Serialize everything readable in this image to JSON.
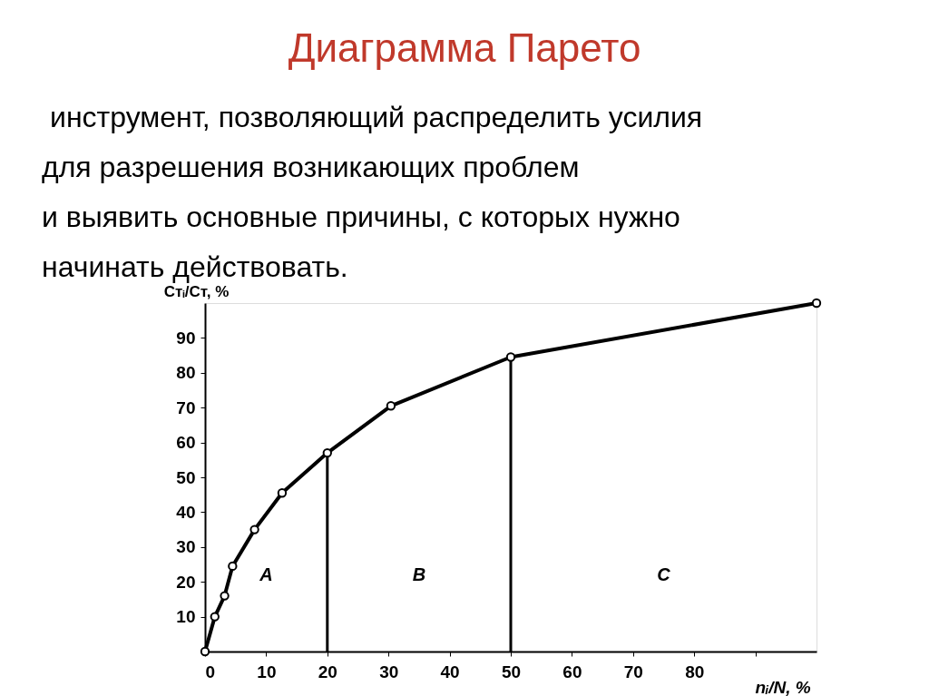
{
  "chart_data": {
    "type": "line",
    "title": "Диаграмма Парето",
    "subtitle": "инструмент, позволяющий распределить усилия\nдля разрешения возникающих проблем\nи выявить основные причины, с которых нужно\nначинать действовать.",
    "xlabel": "nᵢ/N, %",
    "ylabel": "Стᵢ/Ст, %",
    "x": [
      0,
      1.6,
      3.2,
      4.5,
      8.1,
      12.6,
      20,
      30.4,
      50,
      100
    ],
    "series": [
      {
        "color": "#000000",
        "values": [
          0,
          10,
          16,
          24.5,
          35,
          45.5,
          57,
          70.5,
          84.5,
          100
        ]
      }
    ],
    "xlim": [
      0,
      100
    ],
    "ylim": [
      0,
      100
    ],
    "xticks": [
      0,
      10,
      20,
      30,
      40,
      50,
      60,
      70,
      80,
      {
        "value": 90,
        "label": null
      }
    ],
    "yticks": [
      10,
      20,
      30,
      40,
      50,
      60,
      70,
      80,
      90
    ],
    "ref_lines": [
      {
        "axis": "x",
        "value": 20,
        "label": null
      },
      {
        "axis": "x",
        "value": 50,
        "label": null
      }
    ],
    "annotations": [
      "A",
      "B",
      "C"
    ],
    "marker": "circle",
    "line_style": "solid",
    "grid": false
  }
}
